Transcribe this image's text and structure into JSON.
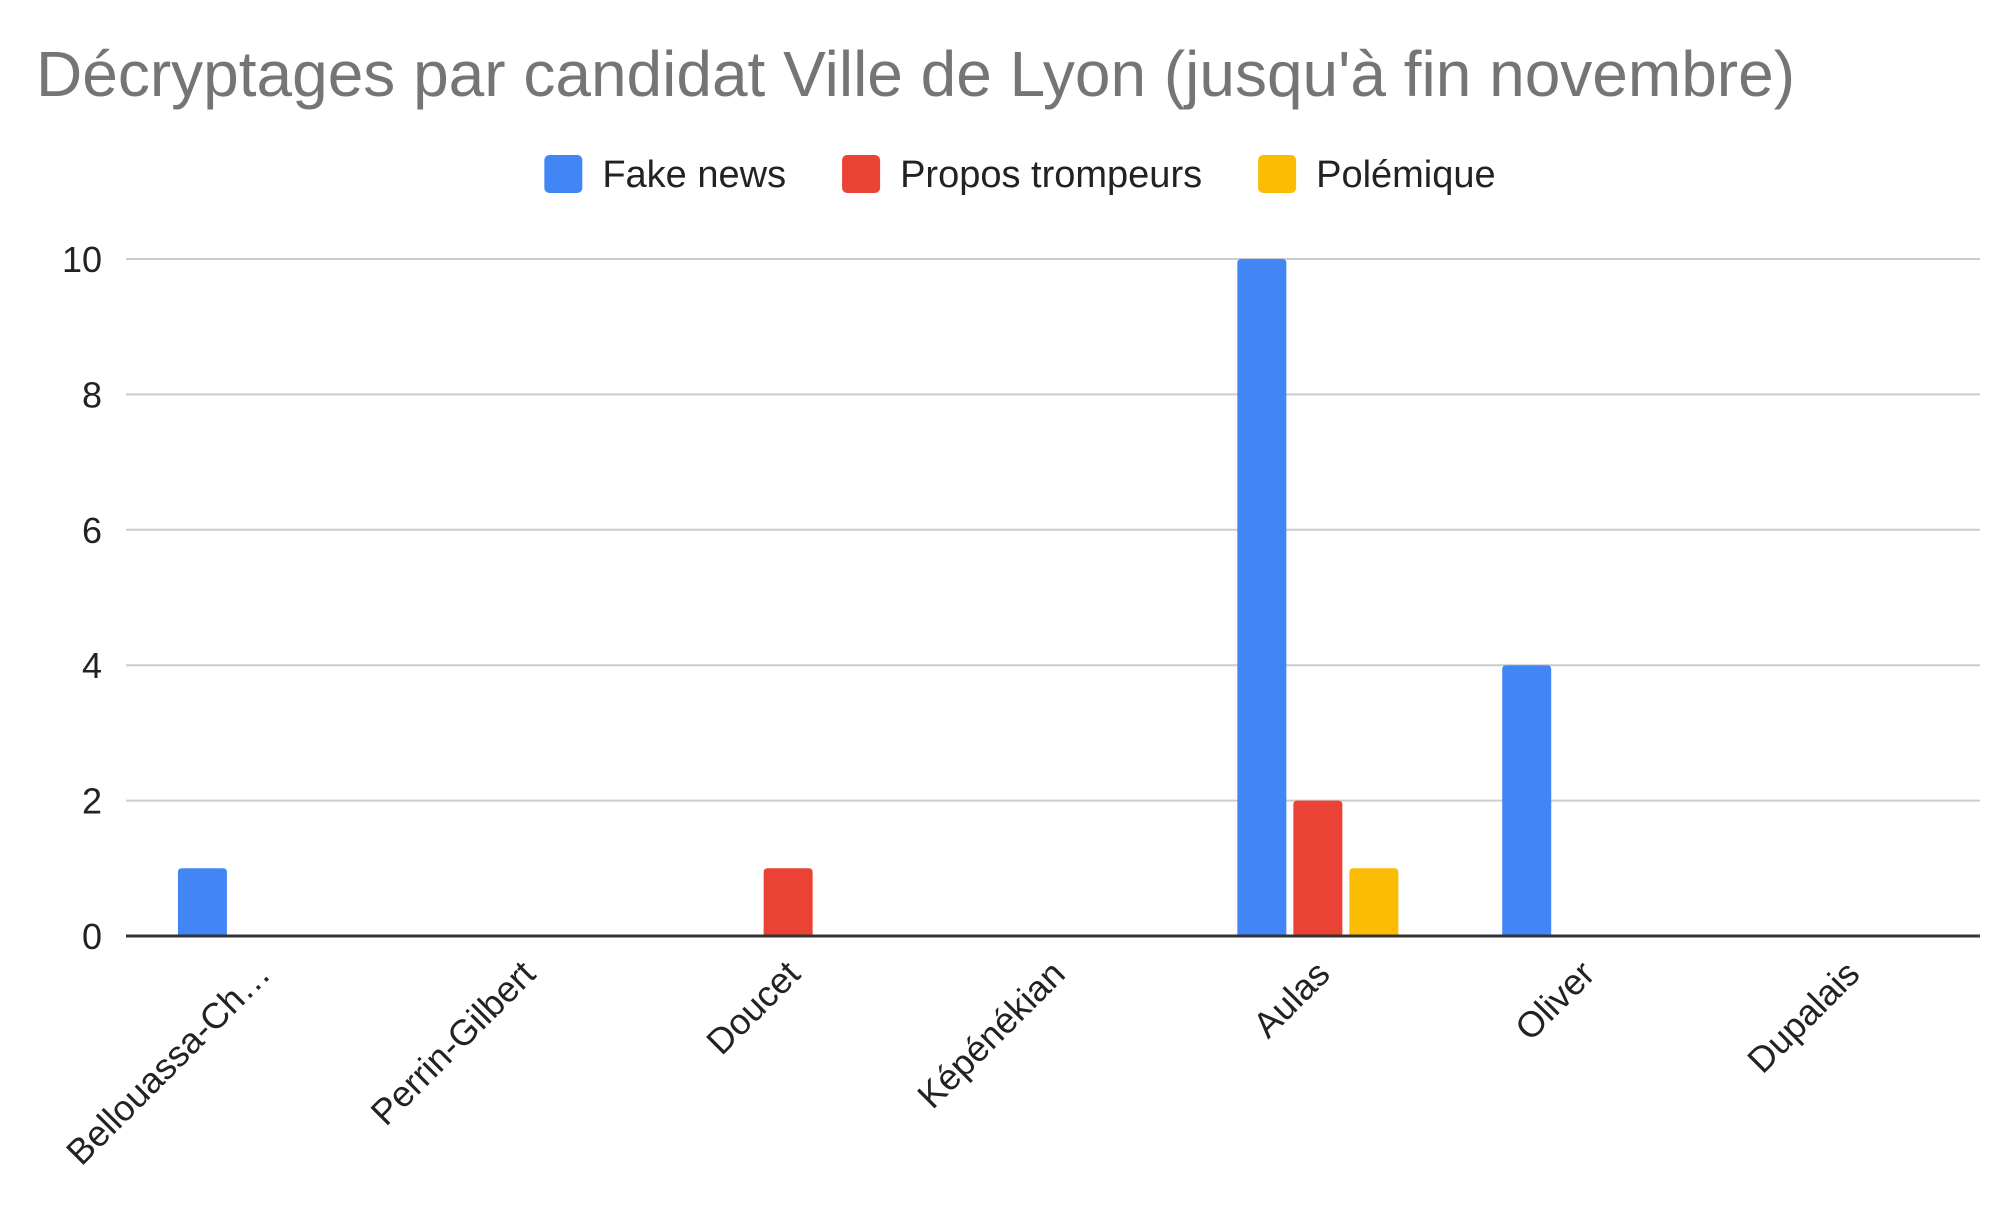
{
  "colors": {
    "background": "#ffffff",
    "gridline": "#cccccc",
    "baseline": "#333333",
    "title": "#757575",
    "text": "#222222"
  },
  "chart_data": {
    "type": "bar",
    "title": "Décryptages par candidat Ville de Lyon (jusqu'à fin novembre)",
    "xlabel": "",
    "ylabel": "",
    "categories": [
      "Bellouassa-Ch…",
      "Perrin-Gilbert",
      "Doucet",
      "Képénékian",
      "Aulas",
      "Oliver",
      "Dupalais"
    ],
    "series": [
      {
        "name": "Fake news",
        "color": "#4285f4",
        "values": [
          1,
          0,
          0,
          0,
          10,
          4,
          0
        ]
      },
      {
        "name": "Propos trompeurs",
        "color": "#ea4335",
        "values": [
          0,
          0,
          1,
          0,
          2,
          0,
          0
        ]
      },
      {
        "name": "Polémique",
        "color": "#fbbc04",
        "values": [
          0,
          0,
          0,
          0,
          1,
          0,
          0
        ]
      }
    ],
    "ylim": [
      0,
      10
    ],
    "yticks": [
      0,
      2,
      4,
      6,
      8,
      10
    ],
    "grid": true,
    "legend_position": "top-center",
    "category_label_rotation": "-45deg"
  }
}
